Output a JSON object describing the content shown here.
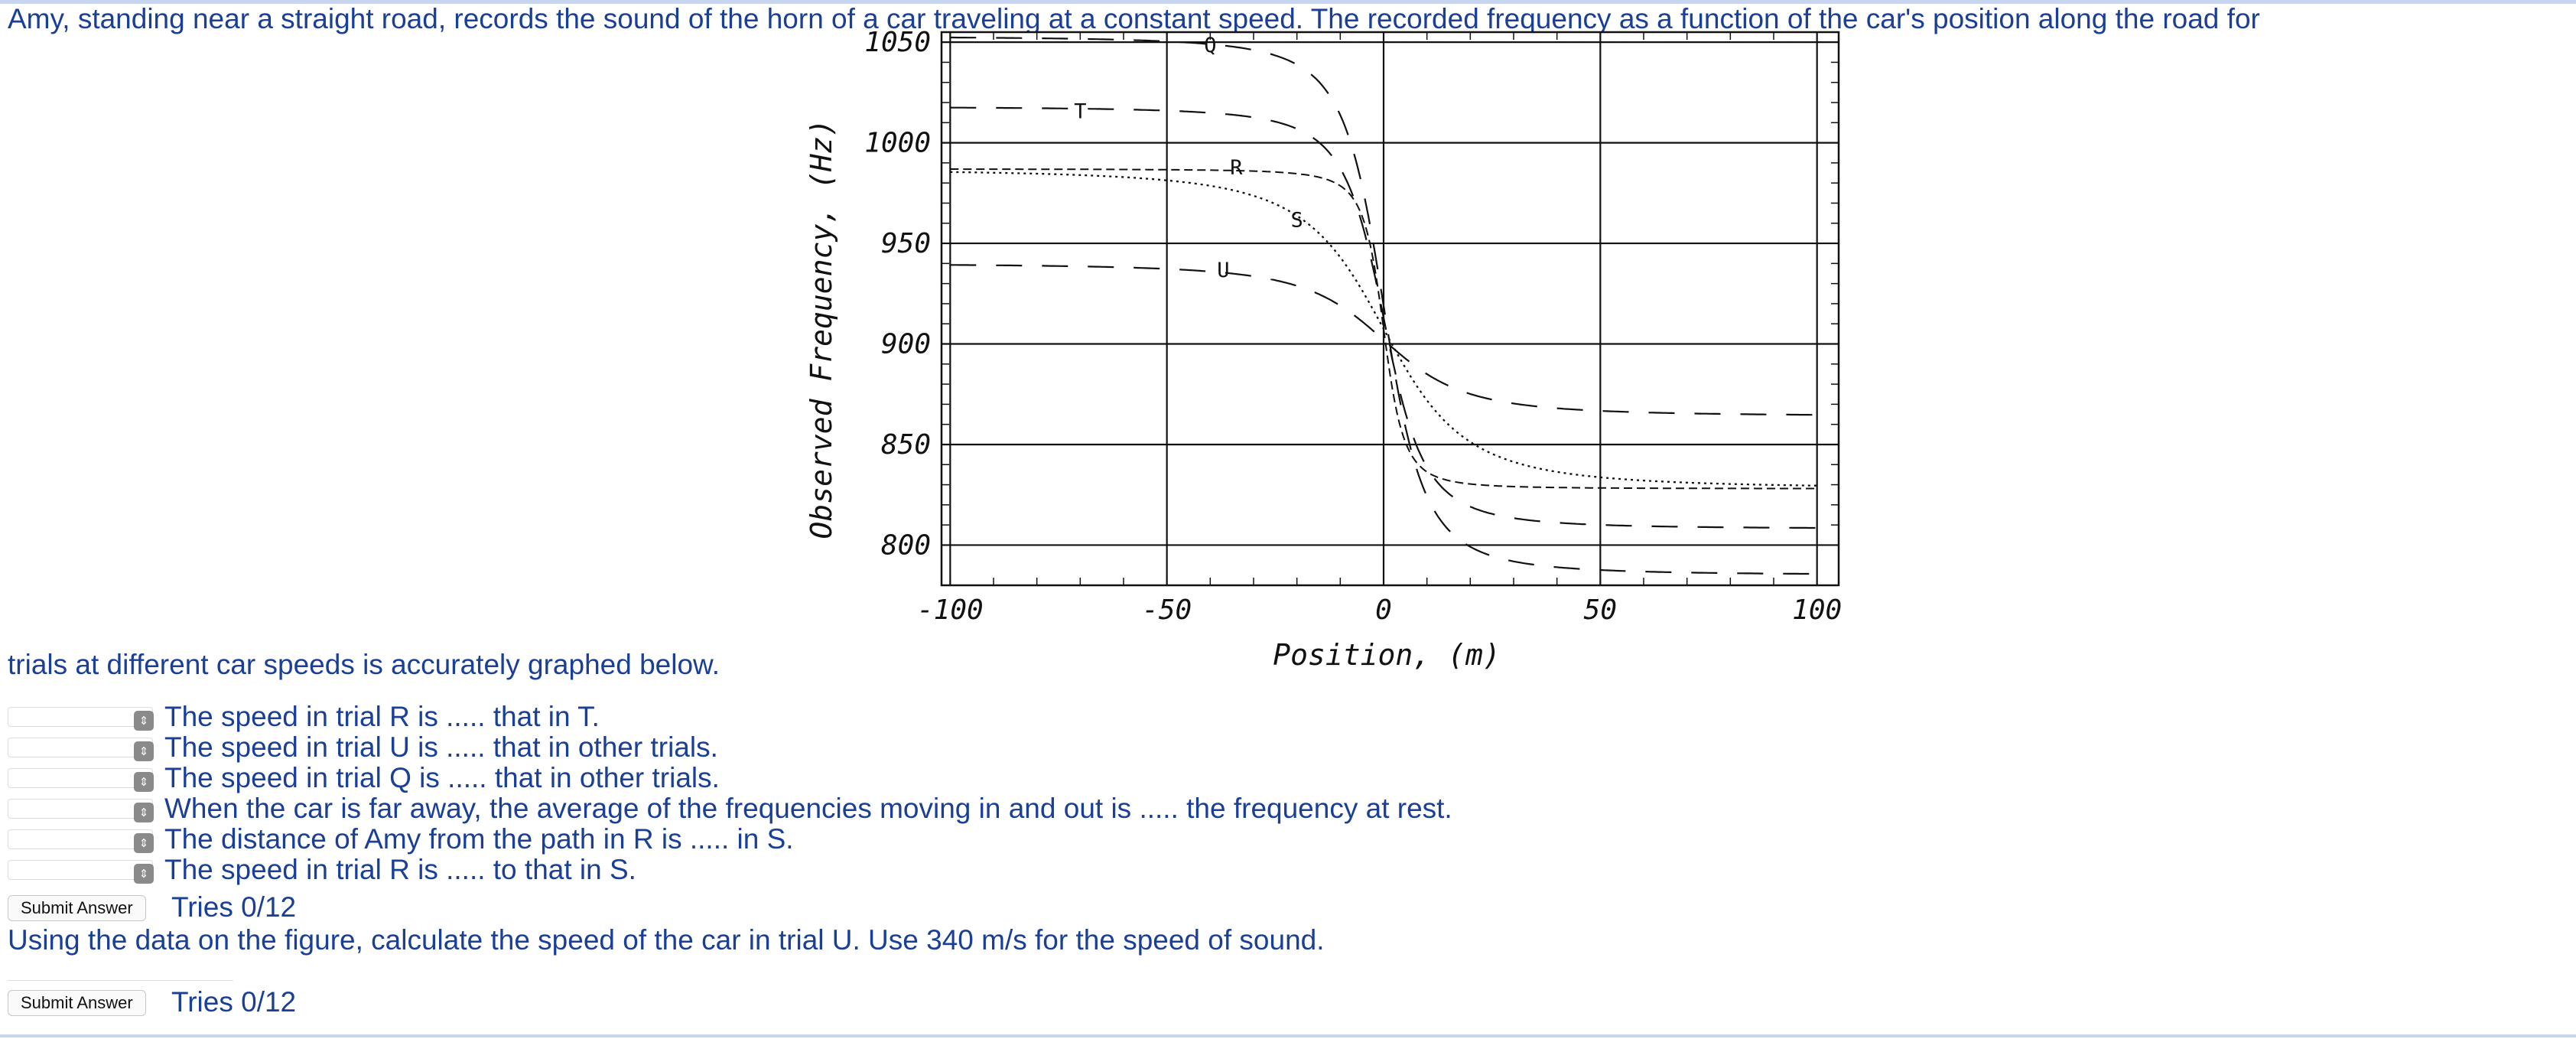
{
  "problem": {
    "intro_part1": "Amy, standing near a straight road, records the sound of the horn of a car traveling at a constant speed. The recorded frequency as a function of the car's position along the road for",
    "intro_part2": "trials at different car speeds is accurately graphed below.",
    "statements": [
      "The speed in trial R is ..... that in T.",
      "The speed in trial U is ..... that in other trials.",
      "The speed in trial Q is ..... that in other trials.",
      "When the car is far away, the average of the frequencies moving in and out is ..... the frequency at rest.",
      "The distance of Amy from the path in R is ..... in S.",
      "The speed in trial R is ..... to that in S."
    ],
    "submit_label": "Submit Answer",
    "tries_1": "Tries 0/12",
    "question2": "Using the data on the figure, calculate the speed of the car in trial U. Use 340 m/s for the speed of sound.",
    "tries_2": "Tries 0/12"
  },
  "chart_data": {
    "type": "line",
    "xlabel": "Position, (m)",
    "ylabel": "Observed Frequency, (Hz)",
    "xlim": [
      -102,
      105
    ],
    "ylim": [
      780,
      1055
    ],
    "xticks": [
      -100,
      -50,
      0,
      50,
      100
    ],
    "yticks": [
      800,
      850,
      900,
      950,
      1000,
      1050
    ],
    "x_tick_labels": [
      "-100",
      "-50",
      "0",
      "50",
      "100"
    ],
    "y_tick_labels": [
      "800",
      "850",
      "900",
      "950",
      "1000",
      "1050"
    ],
    "grid": true,
    "series": [
      {
        "name": "Q",
        "f_far_approach": 1053,
        "f_far_recede": 785,
        "closest_distance_m": 10,
        "style": "long-dash",
        "label_at": [
          -40,
          1049
        ]
      },
      {
        "name": "T",
        "f_far_approach": 1018,
        "f_far_recede": 808,
        "closest_distance_m": 10,
        "style": "long-dash",
        "label_at": [
          -70,
          1016
        ]
      },
      {
        "name": "R",
        "f_far_approach": 987,
        "f_far_recede": 828,
        "closest_distance_m": 5,
        "style": "short-dash",
        "label_at": [
          -34,
          988
        ]
      },
      {
        "name": "S",
        "f_far_approach": 987,
        "f_far_recede": 828,
        "closest_distance_m": 20,
        "style": "dotted",
        "label_at": [
          -20,
          962
        ]
      },
      {
        "name": "U",
        "f_far_approach": 940,
        "f_far_recede": 864,
        "closest_distance_m": 20,
        "style": "long-dash",
        "label_at": [
          -37,
          937
        ]
      }
    ]
  }
}
